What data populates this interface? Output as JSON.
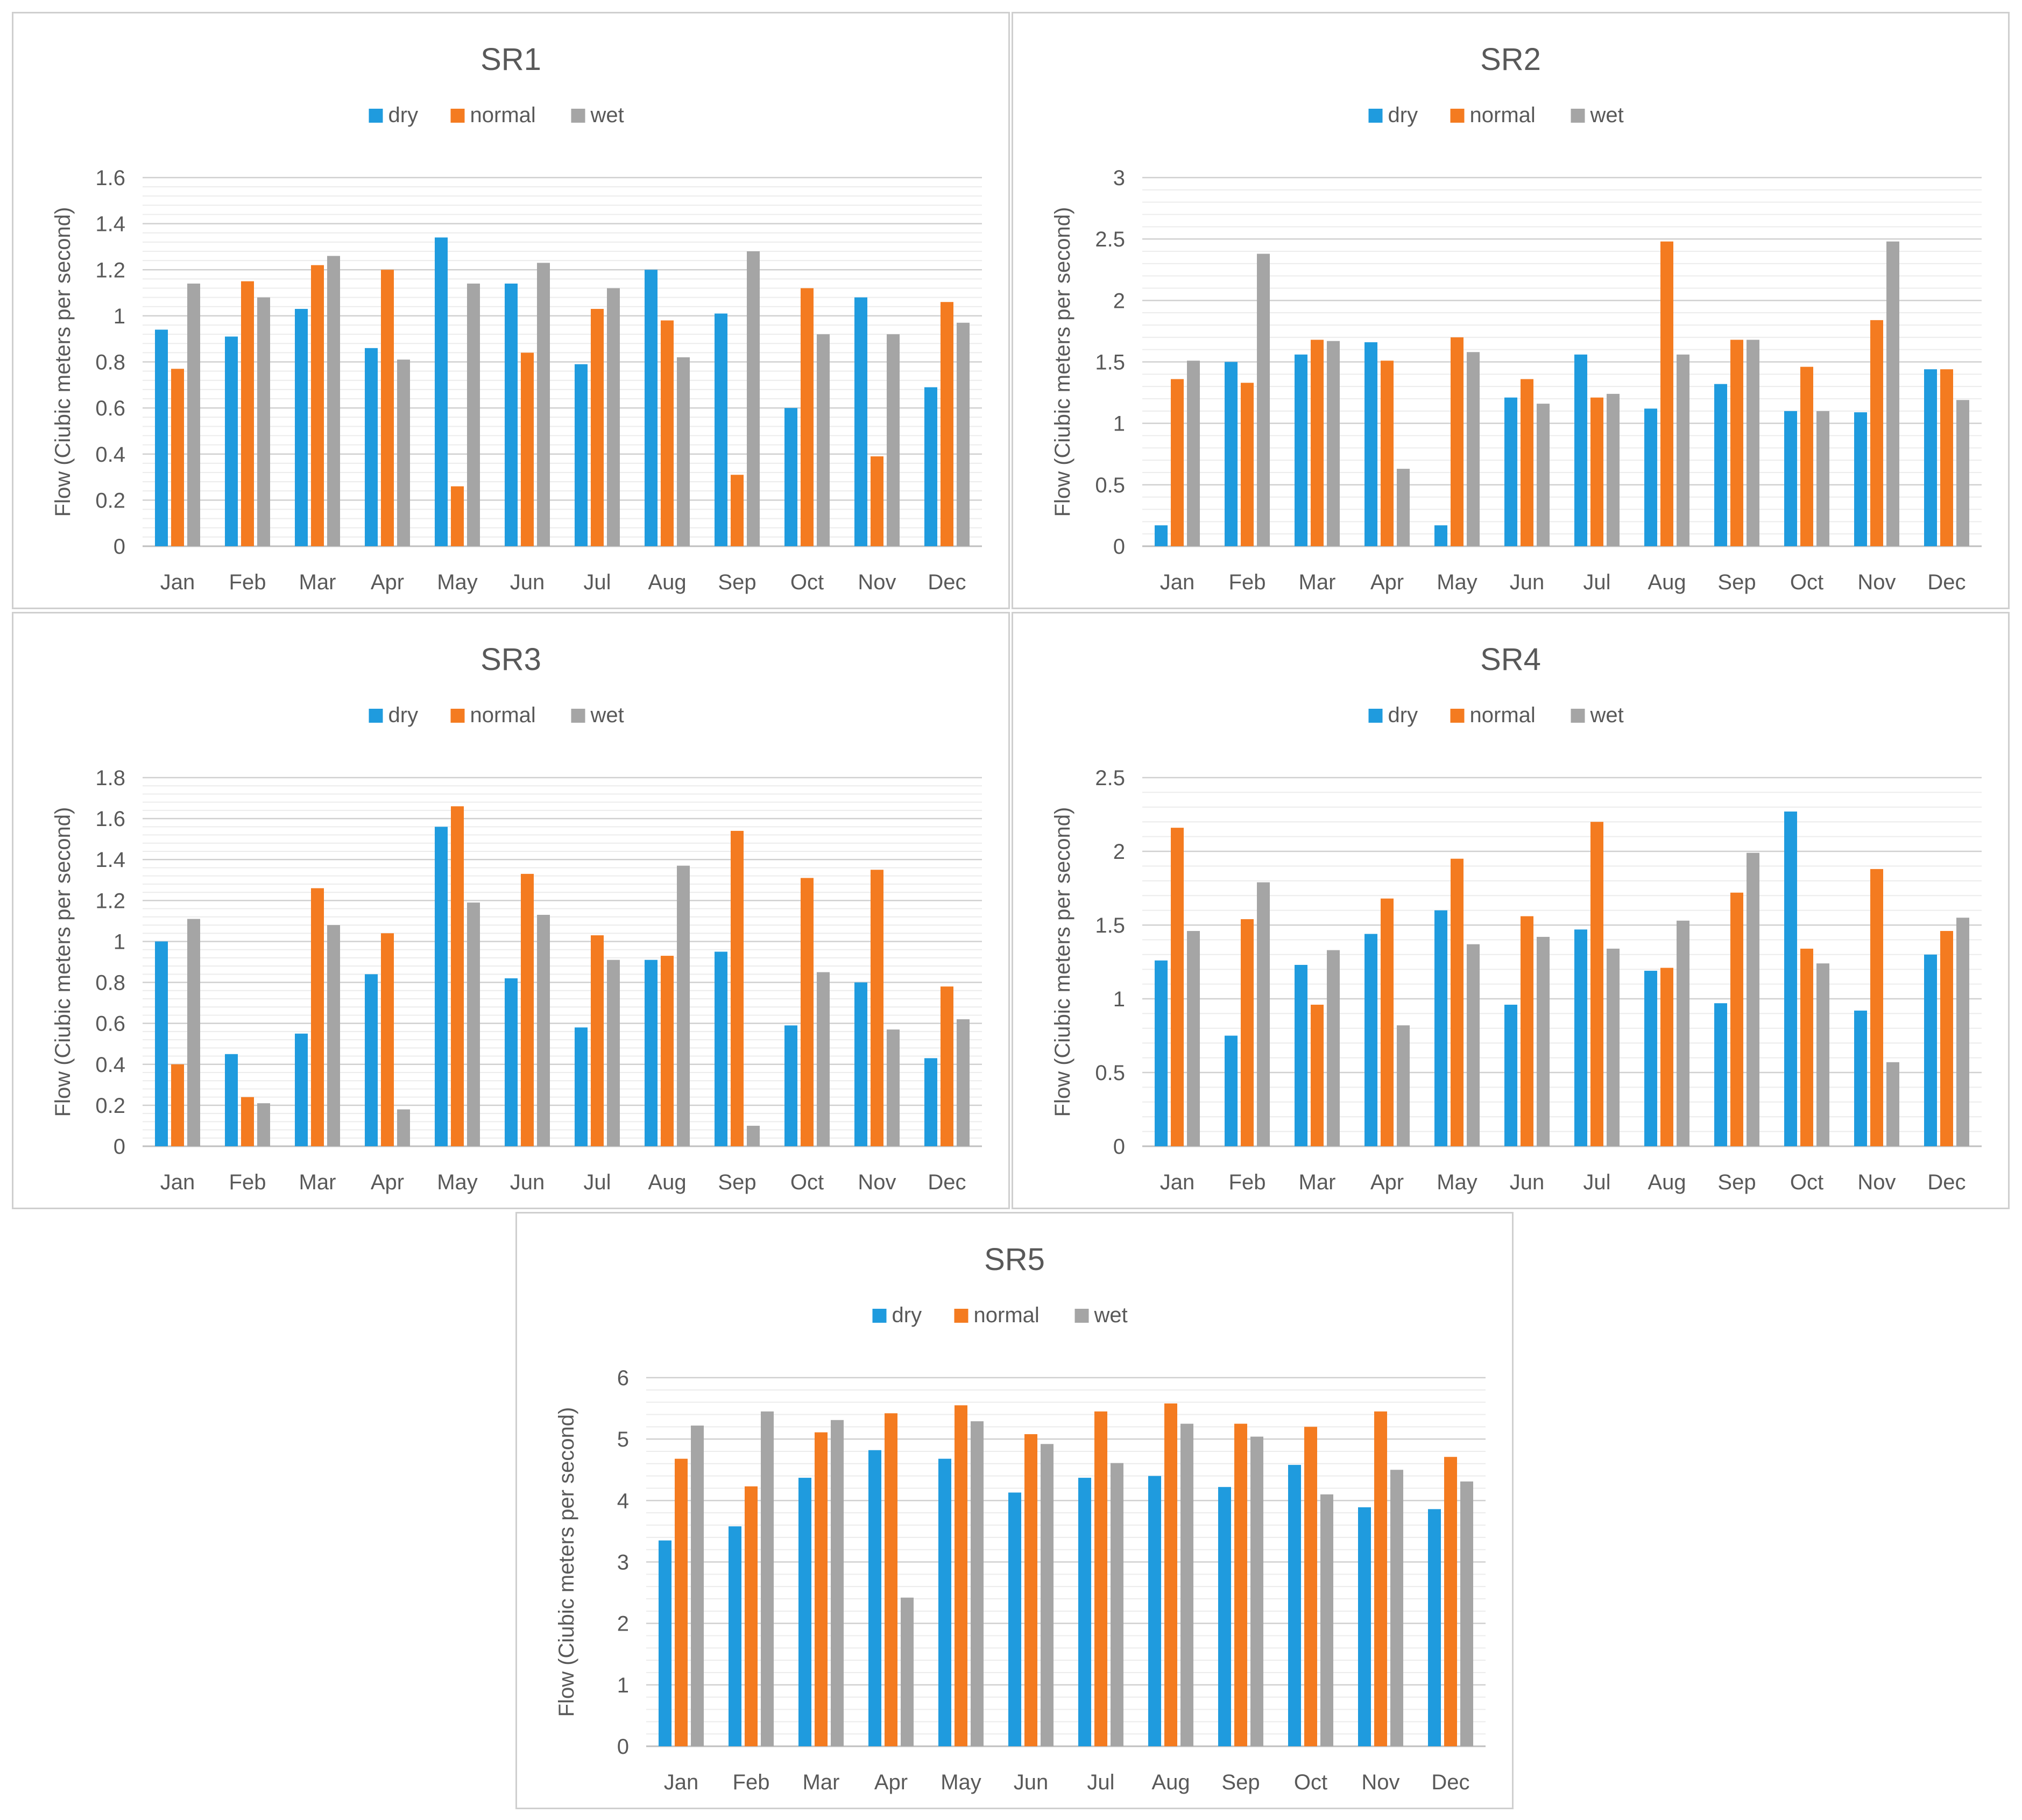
{
  "colors": {
    "dry": "#1f9bde",
    "normal": "#f47b20",
    "wet": "#a5a5a5",
    "grid": "#d9d9d9",
    "text": "#595959"
  },
  "chart_data": [
    {
      "type": "bar",
      "title": "SR1",
      "xlabel": "",
      "ylabel": "Flow (Ciubic meters per second)",
      "ylim": [
        0,
        1.6
      ],
      "yticks": [
        "0",
        "0.2",
        "0.4",
        "0.6",
        "0.8",
        "1",
        "1.2",
        "1.4",
        "1.6"
      ],
      "grid": true,
      "legend": "top-center",
      "categories": [
        "Jan",
        "Feb",
        "Mar",
        "Apr",
        "May",
        "Jun",
        "Jul",
        "Aug",
        "Sep",
        "Oct",
        "Nov",
        "Dec"
      ],
      "series": [
        {
          "name": "dry",
          "color": "#1f9bde",
          "values": [
            0.94,
            0.91,
            1.03,
            0.86,
            1.34,
            1.14,
            0.79,
            1.2,
            1.01,
            0.6,
            1.08,
            0.69
          ]
        },
        {
          "name": "normal",
          "color": "#f47b20",
          "values": [
            0.77,
            1.15,
            1.22,
            1.2,
            0.26,
            0.84,
            1.03,
            0.98,
            0.31,
            1.12,
            0.39,
            1.06
          ]
        },
        {
          "name": "wet",
          "color": "#a5a5a5",
          "values": [
            1.14,
            1.08,
            1.26,
            0.81,
            1.14,
            1.23,
            1.12,
            0.82,
            1.28,
            0.92,
            0.92,
            0.97
          ]
        }
      ]
    },
    {
      "type": "bar",
      "title": "SR2",
      "xlabel": "",
      "ylabel": "Flow (Ciubic meters per second)",
      "ylim": [
        0,
        3
      ],
      "yticks": [
        "0",
        "0.5",
        "1",
        "1.5",
        "2",
        "2.5",
        "3"
      ],
      "grid": true,
      "legend": "top-center",
      "categories": [
        "Jan",
        "Feb",
        "Mar",
        "Apr",
        "May",
        "Jun",
        "Jul",
        "Aug",
        "Sep",
        "Oct",
        "Nov",
        "Dec"
      ],
      "series": [
        {
          "name": "dry",
          "color": "#1f9bde",
          "values": [
            0.17,
            1.5,
            1.56,
            1.66,
            0.17,
            1.21,
            1.56,
            1.12,
            1.32,
            1.1,
            1.09,
            1.44
          ]
        },
        {
          "name": "normal",
          "color": "#f47b20",
          "values": [
            1.36,
            1.33,
            1.68,
            1.51,
            1.7,
            1.36,
            1.21,
            2.48,
            1.68,
            1.46,
            1.84,
            1.44
          ]
        },
        {
          "name": "wet",
          "color": "#a5a5a5",
          "values": [
            1.51,
            2.38,
            1.67,
            0.63,
            1.58,
            1.16,
            1.24,
            1.56,
            1.68,
            1.1,
            2.48,
            1.19
          ]
        }
      ]
    },
    {
      "type": "bar",
      "title": "SR3",
      "xlabel": "",
      "ylabel": "Flow (Ciubic meters per second)",
      "ylim": [
        0,
        1.8
      ],
      "yticks": [
        "0",
        "0.2",
        "0.4",
        "0.6",
        "0.8",
        "1",
        "1.2",
        "1.4",
        "1.6",
        "1.8"
      ],
      "grid": true,
      "legend": "top-center",
      "categories": [
        "Jan",
        "Feb",
        "Mar",
        "Apr",
        "May",
        "Jun",
        "Jul",
        "Aug",
        "Sep",
        "Oct",
        "Nov",
        "Dec"
      ],
      "series": [
        {
          "name": "dry",
          "color": "#1f9bde",
          "values": [
            1.0,
            0.45,
            0.55,
            0.84,
            1.56,
            0.82,
            0.58,
            0.91,
            0.95,
            0.59,
            0.8,
            0.43
          ]
        },
        {
          "name": "normal",
          "color": "#f47b20",
          "values": [
            0.4,
            0.24,
            1.26,
            1.04,
            1.66,
            1.33,
            1.03,
            0.93,
            1.54,
            1.31,
            1.35,
            0.78
          ]
        },
        {
          "name": "wet",
          "color": "#a5a5a5",
          "values": [
            1.11,
            0.21,
            1.08,
            0.18,
            1.19,
            1.13,
            0.91,
            1.37,
            0.1,
            0.85,
            0.57,
            0.62
          ]
        }
      ]
    },
    {
      "type": "bar",
      "title": "SR4",
      "xlabel": "",
      "ylabel": "Flow (Ciubic meters per second)",
      "ylim": [
        0,
        2.5
      ],
      "yticks": [
        "0",
        "0.5",
        "1",
        "1.5",
        "2",
        "2.5"
      ],
      "grid": true,
      "legend": "top-center",
      "categories": [
        "Jan",
        "Feb",
        "Mar",
        "Apr",
        "May",
        "Jun",
        "Jul",
        "Aug",
        "Sep",
        "Oct",
        "Nov",
        "Dec"
      ],
      "series": [
        {
          "name": "dry",
          "color": "#1f9bde",
          "values": [
            1.26,
            0.75,
            1.23,
            1.44,
            1.6,
            0.96,
            1.47,
            1.19,
            0.97,
            2.27,
            0.92,
            1.3
          ]
        },
        {
          "name": "normal",
          "color": "#f47b20",
          "values": [
            2.16,
            1.54,
            0.96,
            1.68,
            1.95,
            1.56,
            2.2,
            1.21,
            1.72,
            1.34,
            1.88,
            1.46
          ]
        },
        {
          "name": "wet",
          "color": "#a5a5a5",
          "values": [
            1.46,
            1.79,
            1.33,
            0.82,
            1.37,
            1.42,
            1.34,
            1.53,
            1.99,
            1.24,
            0.57,
            1.55
          ]
        }
      ]
    },
    {
      "type": "bar",
      "title": "SR5",
      "xlabel": "",
      "ylabel": "Flow (Ciubic meters per second)",
      "ylim": [
        0,
        6
      ],
      "yticks": [
        "0",
        "1",
        "2",
        "3",
        "4",
        "5",
        "6"
      ],
      "grid": true,
      "legend": "top-center",
      "categories": [
        "Jan",
        "Feb",
        "Mar",
        "Apr",
        "May",
        "Jun",
        "Jul",
        "Aug",
        "Sep",
        "Oct",
        "Nov",
        "Dec"
      ],
      "series": [
        {
          "name": "dry",
          "color": "#1f9bde",
          "values": [
            3.35,
            3.58,
            4.37,
            4.82,
            4.68,
            4.13,
            4.37,
            4.4,
            4.22,
            4.58,
            3.89,
            3.86
          ]
        },
        {
          "name": "normal",
          "color": "#f47b20",
          "values": [
            4.68,
            4.23,
            5.11,
            5.42,
            5.55,
            5.08,
            5.45,
            5.58,
            5.25,
            5.2,
            5.45,
            4.71
          ]
        },
        {
          "name": "wet",
          "color": "#a5a5a5",
          "values": [
            5.22,
            5.45,
            5.31,
            2.42,
            5.29,
            4.92,
            4.61,
            5.25,
            5.04,
            4.1,
            4.5,
            4.31
          ]
        }
      ]
    }
  ]
}
